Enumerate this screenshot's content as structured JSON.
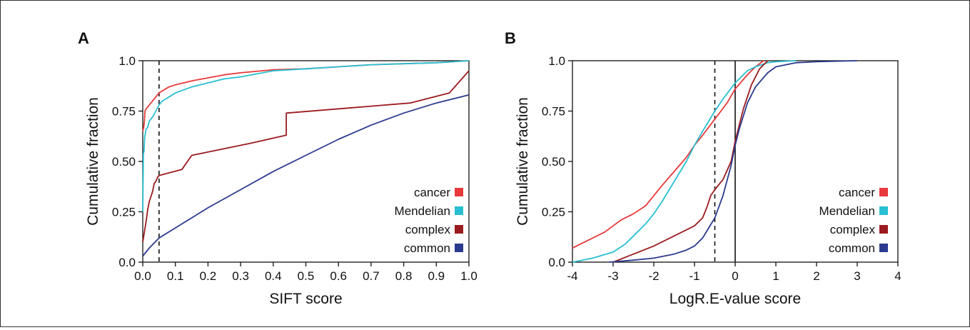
{
  "chart_data": [
    {
      "panel": "A",
      "type": "line",
      "xlabel": "SIFT score",
      "ylabel": "Cumulative fraction",
      "xlim": [
        0,
        1
      ],
      "ylim": [
        0,
        1
      ],
      "x_ticks": [
        "0.0",
        "0.1",
        "0.2",
        "0.3",
        "0.4",
        "0.5",
        "0.6",
        "0.7",
        "0.8",
        "0.9",
        "1.0"
      ],
      "y_ticks": [
        "0.0",
        "0.25",
        "0.50",
        "0.75",
        "1.0"
      ],
      "reference_lines": [
        {
          "x": 0.05,
          "style": "dashed"
        }
      ],
      "legend_position": "bottom-right",
      "series": [
        {
          "name": "cancer",
          "color": "#e8393b",
          "x": [
            0,
            0.003,
            0.005,
            0.007,
            0.01,
            0.02,
            0.03,
            0.04,
            0.05,
            0.06,
            0.08,
            0.1,
            0.15,
            0.2,
            0.25,
            0.3,
            0.4,
            0.5,
            0.6,
            0.7,
            0.8,
            0.9,
            1.0
          ],
          "y": [
            0.65,
            0.67,
            0.7,
            0.75,
            0.76,
            0.78,
            0.8,
            0.82,
            0.84,
            0.85,
            0.87,
            0.88,
            0.9,
            0.915,
            0.93,
            0.94,
            0.955,
            0.96,
            0.97,
            0.98,
            0.985,
            0.99,
            1.0
          ]
        },
        {
          "name": "Mendelian",
          "color": "#27bfd1",
          "x": [
            0,
            0.002,
            0.004,
            0.006,
            0.01,
            0.015,
            0.02,
            0.03,
            0.04,
            0.05,
            0.06,
            0.08,
            0.1,
            0.15,
            0.2,
            0.25,
            0.3,
            0.4,
            0.5,
            0.6,
            0.7,
            0.8,
            0.9,
            1.0
          ],
          "y": [
            0.25,
            0.54,
            0.55,
            0.62,
            0.66,
            0.67,
            0.7,
            0.72,
            0.75,
            0.78,
            0.8,
            0.82,
            0.84,
            0.87,
            0.89,
            0.91,
            0.92,
            0.95,
            0.96,
            0.97,
            0.98,
            0.985,
            0.99,
            1.0
          ]
        },
        {
          "name": "complex",
          "color": "#9b1c1f",
          "x": [
            0,
            0.005,
            0.01,
            0.015,
            0.02,
            0.03,
            0.035,
            0.04,
            0.045,
            0.05,
            0.12,
            0.15,
            0.33,
            0.44,
            0.44,
            0.82,
            0.94,
            1.0
          ],
          "y": [
            0.1,
            0.15,
            0.2,
            0.26,
            0.3,
            0.35,
            0.39,
            0.4,
            0.42,
            0.43,
            0.46,
            0.53,
            0.59,
            0.63,
            0.74,
            0.79,
            0.84,
            0.95
          ]
        },
        {
          "name": "common",
          "color": "#2b3a8f",
          "x": [
            0,
            0.02,
            0.05,
            0.1,
            0.15,
            0.2,
            0.3,
            0.4,
            0.5,
            0.6,
            0.7,
            0.8,
            0.9,
            1.0
          ],
          "y": [
            0.03,
            0.07,
            0.12,
            0.17,
            0.22,
            0.27,
            0.36,
            0.45,
            0.53,
            0.61,
            0.68,
            0.74,
            0.79,
            0.83
          ]
        }
      ]
    },
    {
      "panel": "B",
      "type": "line",
      "xlabel": "LogR.E-value score",
      "ylabel": "Cumulative fraction",
      "xlim": [
        -4,
        4
      ],
      "ylim": [
        0,
        1
      ],
      "x_ticks": [
        "-4",
        "-3",
        "-2",
        "-1",
        "0",
        "1",
        "2",
        "3",
        "4"
      ],
      "y_ticks": [
        "0.0",
        "0.25",
        "0.50",
        "0.75",
        "1.0"
      ],
      "reference_lines": [
        {
          "x": -0.5,
          "style": "dashed"
        },
        {
          "x": 0,
          "style": "solid"
        }
      ],
      "legend_position": "bottom-right",
      "series": [
        {
          "name": "cancer",
          "color": "#e8393b",
          "x": [
            -4,
            -3.8,
            -3.5,
            -3.2,
            -3.0,
            -2.8,
            -2.5,
            -2.2,
            -2.0,
            -1.8,
            -1.5,
            -1.2,
            -1.0,
            -0.8,
            -0.5,
            -0.2,
            0,
            0.3,
            0.5,
            0.7
          ],
          "y": [
            0.07,
            0.09,
            0.12,
            0.15,
            0.18,
            0.21,
            0.24,
            0.28,
            0.33,
            0.38,
            0.45,
            0.52,
            0.58,
            0.63,
            0.71,
            0.79,
            0.86,
            0.93,
            0.97,
            1.0
          ]
        },
        {
          "name": "Mendelian",
          "color": "#27bfd1",
          "x": [
            -4,
            -3.5,
            -3.0,
            -2.7,
            -2.5,
            -2.2,
            -2.0,
            -1.8,
            -1.5,
            -1.2,
            -1.0,
            -0.8,
            -0.5,
            -0.3,
            0,
            0.3,
            0.5,
            0.8,
            1.0,
            1.5
          ],
          "y": [
            0.0,
            0.02,
            0.05,
            0.09,
            0.13,
            0.19,
            0.24,
            0.3,
            0.4,
            0.5,
            0.58,
            0.65,
            0.75,
            0.81,
            0.89,
            0.95,
            0.97,
            0.99,
            0.995,
            1.0
          ]
        },
        {
          "name": "complex",
          "color": "#9b1c1f",
          "x": [
            -3.0,
            -2.5,
            -2.0,
            -1.5,
            -1.0,
            -0.8,
            -0.7,
            -0.6,
            -0.5,
            -0.3,
            -0.1,
            0,
            0.1,
            0.2,
            0.4,
            0.6,
            0.8
          ],
          "y": [
            0.0,
            0.04,
            0.08,
            0.13,
            0.18,
            0.22,
            0.27,
            0.33,
            0.36,
            0.41,
            0.5,
            0.6,
            0.68,
            0.76,
            0.88,
            0.96,
            1.0
          ]
        },
        {
          "name": "common",
          "color": "#2b3a8f",
          "x": [
            -3.1,
            -2.5,
            -2.0,
            -1.5,
            -1.2,
            -1.0,
            -0.8,
            -0.5,
            -0.3,
            -0.1,
            0,
            0.1,
            0.3,
            0.5,
            0.8,
            1.0,
            1.5,
            2.0,
            3.0
          ],
          "y": [
            0.0,
            0.01,
            0.02,
            0.04,
            0.06,
            0.08,
            0.12,
            0.22,
            0.33,
            0.48,
            0.58,
            0.66,
            0.79,
            0.87,
            0.94,
            0.97,
            0.99,
            0.995,
            1.0
          ]
        }
      ]
    }
  ]
}
